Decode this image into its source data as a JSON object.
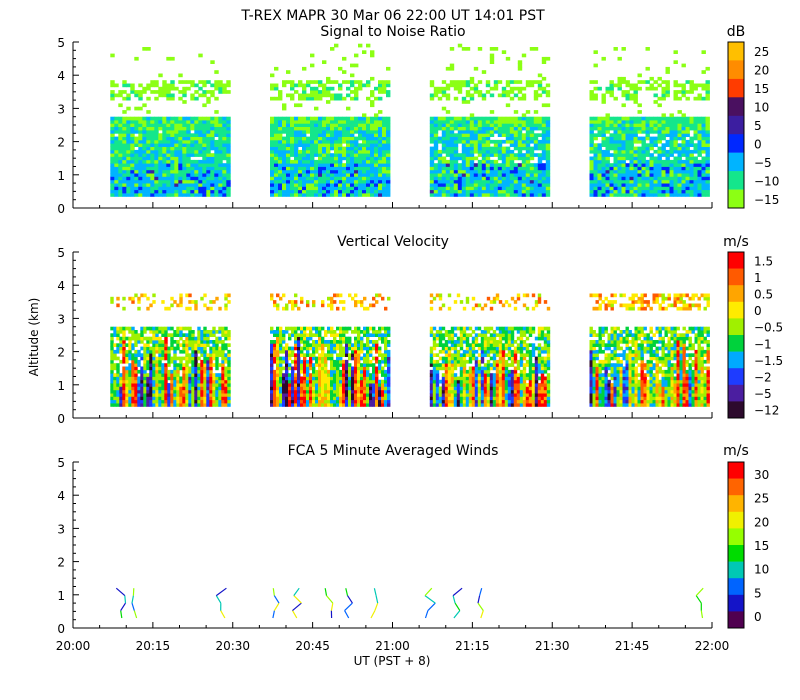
{
  "header": {
    "main_title": "T-REX   MAPR 30 Mar 06   22:00 UT   14:01   PST"
  },
  "axes": {
    "y_label": "Altitude (km)",
    "x_label": "UT  (PST + 8)",
    "y_range_km": [
      0,
      5
    ],
    "y_ticks": [
      "0",
      "1",
      "2",
      "3",
      "4",
      "5"
    ],
    "x_range_minutes": [
      0,
      120
    ],
    "x_ticks": [
      "20:00",
      "20:15",
      "20:30",
      "20:45",
      "21:00",
      "21:15",
      "21:30",
      "21:45",
      "22:00"
    ]
  },
  "chart_data": [
    {
      "type": "heatmap",
      "title": "Signal to Noise Ratio",
      "colorbar_unit": "dB",
      "colorbar_labels": [
        "25",
        "20",
        "15",
        "10",
        "5",
        "0",
        "−5",
        "−10",
        "−15"
      ],
      "colors": [
        "#ffbf00",
        "#ff8c00",
        "#ff3c00",
        "#4a1060",
        "#3c1ea0",
        "#0028ff",
        "#00b4ff",
        "#14e68c",
        "#8cff14"
      ],
      "data_segments_minutes": [
        [
          7,
          29
        ],
        [
          37,
          59
        ],
        [
          67,
          89
        ],
        [
          97,
          119
        ]
      ],
      "data_altitude_range_km": [
        0.35,
        4.9
      ]
    },
    {
      "type": "heatmap",
      "title": "Vertical Velocity",
      "colorbar_unit": "m/s",
      "colorbar_labels": [
        "1.5",
        "1",
        "0.5",
        "0",
        "−0.5",
        "−1",
        "−1.5",
        "−2",
        "−5",
        "−12"
      ],
      "colors": [
        "#ff0000",
        "#ff5a00",
        "#ffa500",
        "#ffeb00",
        "#a0f000",
        "#00d23c",
        "#00aaff",
        "#1e3cff",
        "#4b1ea0",
        "#2d0a2d"
      ],
      "data_segments_minutes": [
        [
          7,
          29
        ],
        [
          37,
          59
        ],
        [
          67,
          89
        ],
        [
          97,
          119
        ]
      ],
      "data_altitude_range_km": [
        0.35,
        3.7
      ]
    },
    {
      "type": "line",
      "title": "FCA 5 Minute Averaged Winds",
      "colorbar_unit": "m/s",
      "colorbar_labels": [
        "30",
        "25",
        "20",
        "15",
        "10",
        "5",
        "0"
      ],
      "colors": [
        "#ff0000",
        "#ff6400",
        "#ffb400",
        "#f0f000",
        "#96ff00",
        "#00dc00",
        "#00c8b4",
        "#0064ff",
        "#1414c8",
        "#500050"
      ],
      "wind_times_minutes": [
        9,
        12,
        28,
        38,
        42,
        48,
        52,
        57,
        67,
        72,
        76,
        118
      ]
    }
  ]
}
